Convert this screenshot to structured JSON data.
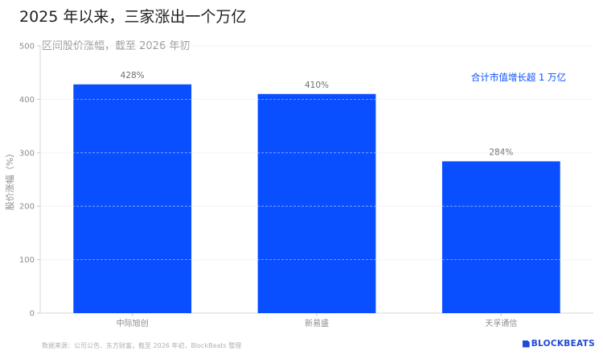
{
  "chart_data": {
    "type": "bar",
    "title": "2025 年以来，三家涨出一个万亿",
    "subtitle": "区间股价涨幅，截至 2026 年初",
    "ylabel": "股价涨幅（%）",
    "xlabel": "",
    "categories": [
      "中际旭创",
      "新易盛",
      "天孚通信"
    ],
    "values": [
      428,
      410,
      284
    ],
    "value_labels": [
      "428%",
      "410%",
      "284%"
    ],
    "ylim": [
      0,
      500
    ],
    "yticks": [
      0,
      100,
      200,
      300,
      400,
      500
    ],
    "grid": true,
    "bar_color": "#0a4fff",
    "annotation": "合计市值增长超 1 万亿"
  },
  "footer": {
    "source": "数据来源：公司公告、东方财富，截至 2026 年初，BlockBeats 整理",
    "brand": "BLOCKBEATS"
  }
}
